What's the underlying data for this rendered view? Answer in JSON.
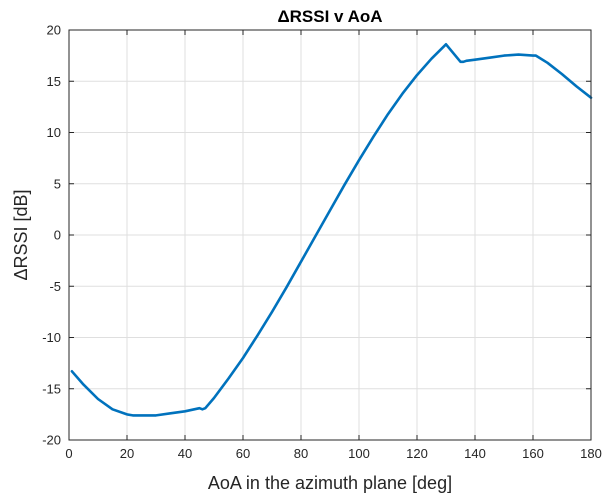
{
  "chart_data": {
    "type": "line",
    "title": "ΔRSSI v AoA",
    "xlabel": "AoA in the azimuth plane [deg]",
    "ylabel": "ΔRSSI [dB]",
    "xlim": [
      0,
      180
    ],
    "ylim": [
      -20,
      20
    ],
    "xticks": [
      0,
      20,
      40,
      60,
      80,
      100,
      120,
      140,
      160,
      180
    ],
    "yticks": [
      -20,
      -15,
      -10,
      -5,
      0,
      5,
      10,
      15,
      20
    ],
    "xtick_labels": [
      "0",
      "20",
      "40",
      "60",
      "80",
      "100",
      "120",
      "140",
      "160",
      "180"
    ],
    "ytick_labels": [
      "-20",
      "-15",
      "-10",
      "-5",
      "0",
      "5",
      "10",
      "15",
      "20"
    ],
    "grid": true,
    "line_color": "#0072BD",
    "series": [
      {
        "x": [
          1,
          5,
          10,
          15,
          20,
          22,
          25,
          30,
          35,
          40,
          45,
          46,
          47,
          50,
          55,
          60,
          65,
          70,
          75,
          80,
          85,
          90,
          95,
          100,
          105,
          110,
          115,
          120,
          125,
          130,
          135,
          136,
          137,
          140,
          145,
          150,
          155,
          160,
          161,
          165,
          170,
          175,
          180
        ],
        "y": [
          -13.3,
          -14.6,
          -16.0,
          -17.0,
          -17.5,
          -17.6,
          -17.6,
          -17.6,
          -17.4,
          -17.2,
          -16.9,
          -17.0,
          -16.9,
          -15.9,
          -14.0,
          -12.0,
          -9.8,
          -7.5,
          -5.1,
          -2.6,
          -0.1,
          2.4,
          4.9,
          7.3,
          9.6,
          11.8,
          13.8,
          15.6,
          17.2,
          18.6,
          16.9,
          16.9,
          17.0,
          17.1,
          17.3,
          17.5,
          17.6,
          17.5,
          17.5,
          16.8,
          15.7,
          14.5,
          13.4
        ]
      }
    ]
  }
}
